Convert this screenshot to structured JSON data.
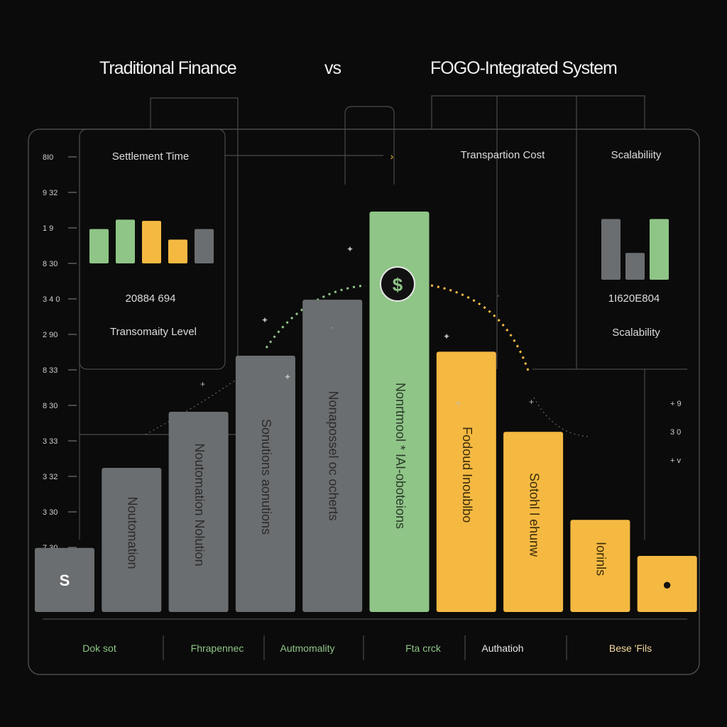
{
  "header": {
    "left_title": "Traditional Finance",
    "vs": "vs",
    "right_title": "FOGO-Integrated System"
  },
  "panels": {
    "left": {
      "title": "Settlement Time",
      "value": "20884 694",
      "subtitle": "Transomaity Level",
      "mini_bars": [
        {
          "value": 0.55,
          "color": "#8fc587"
        },
        {
          "value": 0.7,
          "color": "#8fc587"
        },
        {
          "value": 0.68,
          "color": "#f5b942"
        },
        {
          "value": 0.38,
          "color": "#f5b942"
        },
        {
          "value": 0.55,
          "color": "#6b6e70"
        }
      ]
    },
    "middle": {
      "title": "Transpartion Cost"
    },
    "right": {
      "title": "Scalabiliity",
      "value": "1I620E804",
      "subtitle": "Scalability",
      "mini_bars": [
        {
          "value": 0.95,
          "color": "#6b6e70"
        },
        {
          "value": 0.42,
          "color": "#6b6e70"
        },
        {
          "value": 0.95,
          "color": "#8fc587"
        }
      ]
    }
  },
  "chart_data": {
    "type": "bar",
    "y_ticks": [
      "8I0",
      "9 32",
      "1 9",
      "8 30",
      "3 4 0",
      "2 90",
      "8 33",
      "8 30",
      "3 33",
      "3 32",
      "3 30",
      "7 30"
    ],
    "right_ticks": [
      "+ 9",
      "3 0",
      "+ v"
    ],
    "bars": [
      {
        "label": "S",
        "value": 0.16,
        "color": "#6b6e70",
        "text_color": "#ffffff"
      },
      {
        "label": "Noutomation",
        "value": 0.36,
        "color": "#6b6e70",
        "text_color": "#2b2b2b"
      },
      {
        "label": "Noutomation Nolution",
        "value": 0.5,
        "color": "#6b6e70",
        "text_color": "#2b2b2b"
      },
      {
        "label": "Sonutions  aonutions",
        "value": 0.64,
        "color": "#6b6e70",
        "text_color": "#2b2b2b"
      },
      {
        "label": "Nonapossel  oc  ocherts",
        "value": 0.78,
        "color": "#6b6e70",
        "text_color": "#2b2b2b"
      },
      {
        "label": "Nonrtmool  *  IAI-oboteions",
        "value": 1.0,
        "color": "#8fc587",
        "text_color": "#2b3b2a"
      },
      {
        "label": "Fodoud  Inoublbo",
        "value": 0.65,
        "color": "#f5b942",
        "text_color": "#3a2a08"
      },
      {
        "label": "Sotohl  l  ehunw",
        "value": 0.45,
        "color": "#f5b942",
        "text_color": "#3a2a08"
      },
      {
        "label": "Iorinls",
        "value": 0.23,
        "color": "#f5b942",
        "text_color": "#3a2a08"
      },
      {
        "label": "●",
        "value": 0.14,
        "color": "#f5b942",
        "text_color": "#111111"
      }
    ],
    "center_icon": "dollar-icon"
  },
  "bottom": {
    "labels": [
      {
        "text": "Dok sot",
        "color": "#8fc587"
      },
      {
        "text": "Fhrapennec",
        "color": "#8fc587"
      },
      {
        "text": "Autmomality",
        "color": "#8fc587"
      },
      {
        "text": "Fta crck",
        "color": "#8fc587"
      },
      {
        "text": "Authatioh",
        "color": "#e8e8e8"
      },
      {
        "text": "Bese 'Fils",
        "color": "#f5d9a0"
      }
    ]
  }
}
